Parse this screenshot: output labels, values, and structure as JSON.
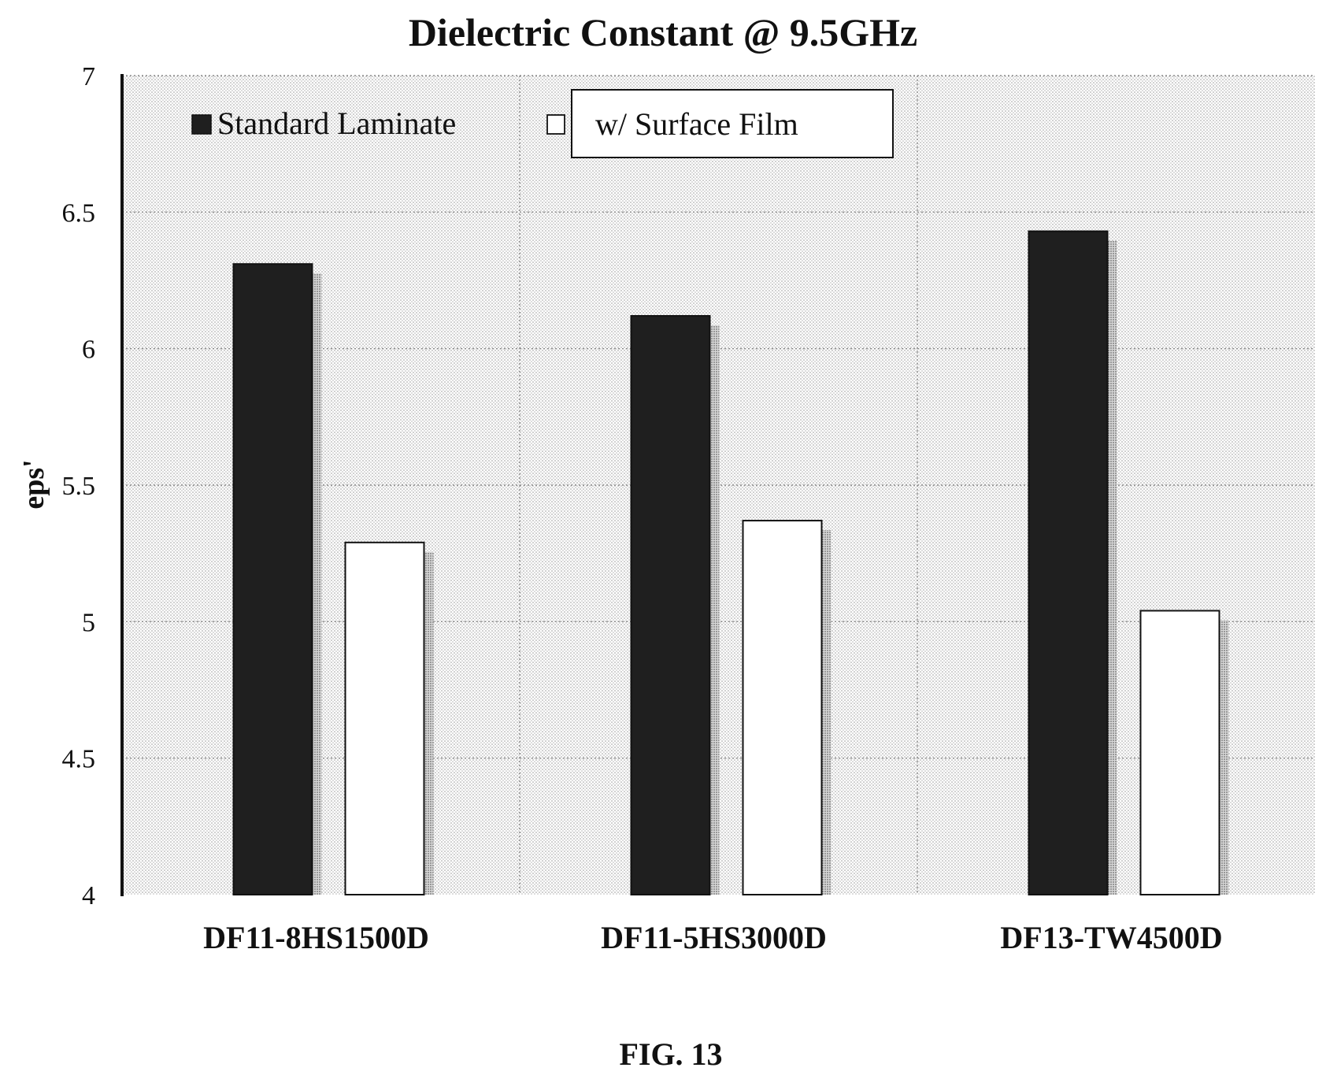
{
  "figure_label": "FIG. 13",
  "chart_data": {
    "type": "bar",
    "title": "Dielectric Constant @ 9.5GHz",
    "xlabel": "",
    "ylabel": "eps'",
    "ylim": [
      4,
      7
    ],
    "yticks": [
      4,
      4.5,
      5,
      5.5,
      6,
      6.5,
      7
    ],
    "grid": true,
    "legend_position": "top",
    "categories": [
      "DF11-8HS1500D",
      "DF11-5HS3000D",
      "DF13-TW4500D"
    ],
    "series": [
      {
        "name": "Standard Laminate",
        "values": [
          6.31,
          6.12,
          6.43
        ],
        "color": "#1f1f1f"
      },
      {
        "name": "w/ Surface Film",
        "values": [
          5.29,
          5.37,
          5.04
        ],
        "color": "#ffffff"
      }
    ]
  }
}
